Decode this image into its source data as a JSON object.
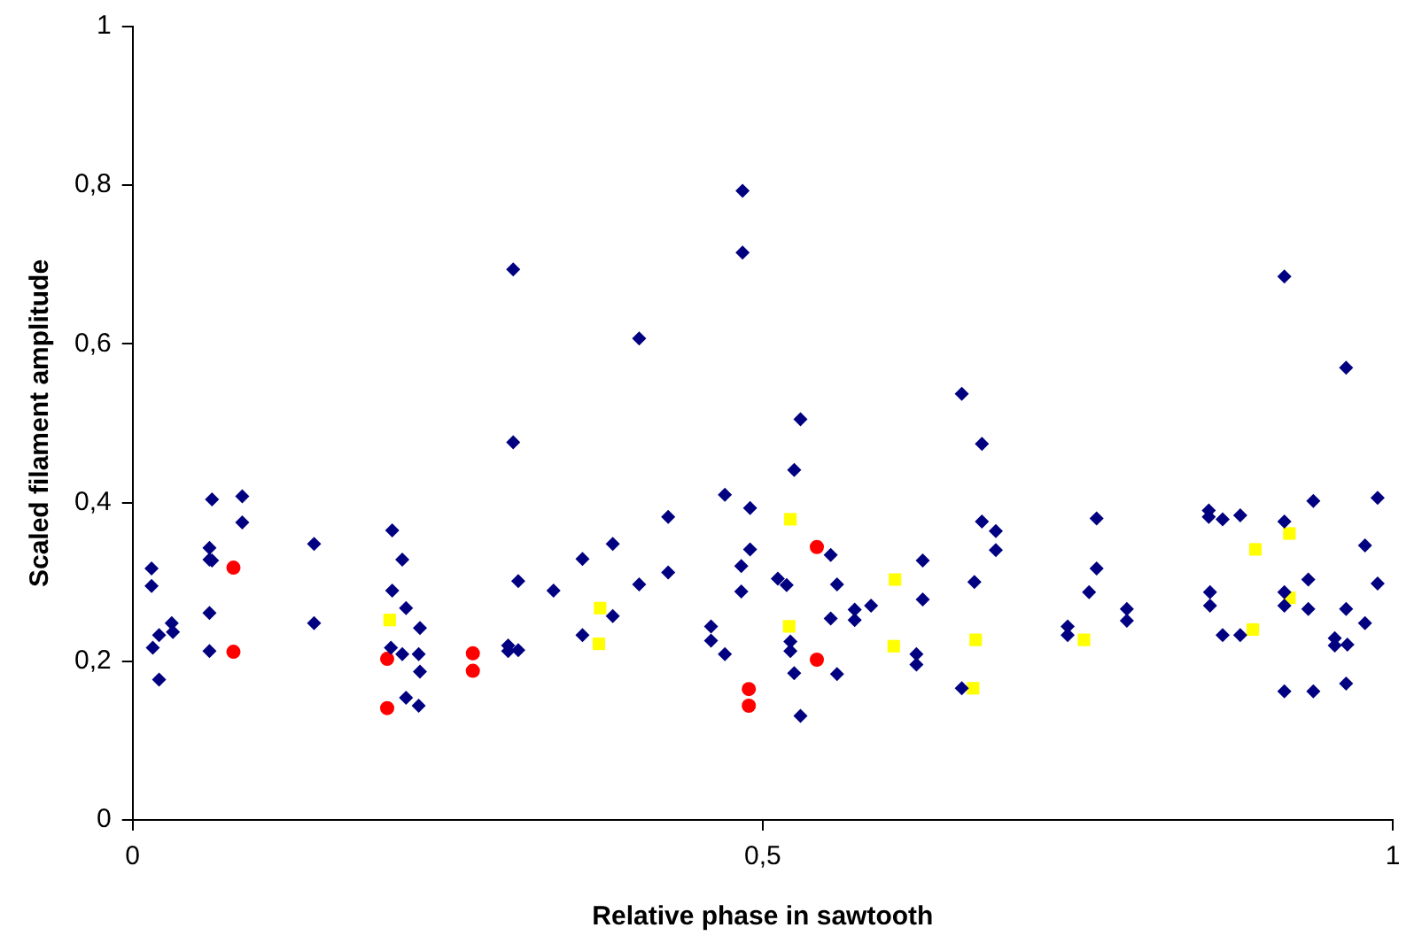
{
  "chart_data": {
    "type": "scatter",
    "xlabel": "Relative phase in sawtooth",
    "ylabel": "Scaled filament amplitude",
    "xlim": [
      0,
      1
    ],
    "xticks": [
      0,
      {
        "value": 0.5,
        "label": "0,5"
      },
      1
    ],
    "ylim": [
      0,
      1
    ],
    "yticks": [
      0,
      {
        "value": 0.2,
        "label": "0,2"
      },
      {
        "value": 0.4,
        "label": "0,4"
      },
      {
        "value": 0.6,
        "label": "0,6"
      },
      {
        "value": 0.8,
        "label": "0,8"
      },
      1
    ],
    "grid": false,
    "legend": false,
    "series": [
      {
        "color": "#000080",
        "marker": "diamond",
        "x": [
          0.015,
          0.015,
          0.031,
          0.021,
          0.016,
          0.032,
          0.021,
          0.063,
          0.087,
          0.087,
          0.061,
          0.061,
          0.063,
          0.061,
          0.061,
          0.144,
          0.144,
          0.206,
          0.214,
          0.206,
          0.217,
          0.228,
          0.205,
          0.214,
          0.227,
          0.228,
          0.217,
          0.227,
          0.298,
          0.298,
          0.306,
          0.306,
          0.334,
          0.484,
          0.484,
          0.302,
          0.402,
          0.302,
          0.53,
          0.525,
          0.47,
          0.49,
          0.425,
          0.381,
          0.357,
          0.49,
          0.483,
          0.425,
          0.402,
          0.483,
          0.512,
          0.519,
          0.554,
          0.559,
          0.627,
          0.627,
          0.586,
          0.573,
          0.573,
          0.554,
          0.381,
          0.357,
          0.459,
          0.459,
          0.47,
          0.522,
          0.522,
          0.525,
          0.559,
          0.53,
          0.622,
          0.622,
          0.914,
          0.963,
          0.658,
          0.674,
          0.674,
          0.685,
          0.685,
          0.668,
          0.658,
          0.765,
          0.765,
          0.759,
          0.789,
          0.789,
          0.742,
          0.742,
          0.854,
          0.854,
          0.865,
          0.879,
          0.914,
          0.937,
          0.988,
          0.978,
          0.988,
          0.933,
          0.855,
          0.855,
          0.914,
          0.914,
          0.933,
          0.963,
          0.978,
          0.865,
          0.879,
          0.954,
          0.954,
          0.964,
          0.914,
          0.937,
          0.963
        ],
        "values": [
          0.317,
          0.295,
          0.248,
          0.233,
          0.217,
          0.237,
          0.177,
          0.404,
          0.408,
          0.375,
          0.343,
          0.328,
          0.327,
          0.261,
          0.213,
          0.348,
          0.248,
          0.365,
          0.328,
          0.289,
          0.267,
          0.242,
          0.217,
          0.209,
          0.209,
          0.187,
          0.154,
          0.144,
          0.22,
          0.213,
          0.214,
          0.301,
          0.289,
          0.793,
          0.715,
          0.694,
          0.607,
          0.476,
          0.505,
          0.441,
          0.41,
          0.393,
          0.382,
          0.348,
          0.329,
          0.341,
          0.32,
          0.312,
          0.297,
          0.288,
          0.304,
          0.296,
          0.334,
          0.297,
          0.327,
          0.278,
          0.27,
          0.265,
          0.252,
          0.254,
          0.257,
          0.233,
          0.244,
          0.226,
          0.209,
          0.225,
          0.213,
          0.185,
          0.184,
          0.131,
          0.209,
          0.196,
          0.685,
          0.57,
          0.537,
          0.474,
          0.376,
          0.364,
          0.34,
          0.3,
          0.166,
          0.38,
          0.317,
          0.287,
          0.266,
          0.251,
          0.244,
          0.233,
          0.39,
          0.382,
          0.379,
          0.384,
          0.376,
          0.402,
          0.406,
          0.346,
          0.298,
          0.303,
          0.287,
          0.27,
          0.287,
          0.27,
          0.266,
          0.266,
          0.248,
          0.233,
          0.233,
          0.229,
          0.22,
          0.221,
          0.162,
          0.162,
          0.172
        ]
      },
      {
        "color": "#ff0000",
        "marker": "circle",
        "x": [
          0.08,
          0.08,
          0.202,
          0.202,
          0.27,
          0.27,
          0.543,
          0.543,
          0.489,
          0.489
        ],
        "values": [
          0.318,
          0.212,
          0.203,
          0.141,
          0.21,
          0.188,
          0.344,
          0.202,
          0.165,
          0.144
        ]
      },
      {
        "color": "#ffff00",
        "marker": "square",
        "x": [
          0.204,
          0.371,
          0.37,
          0.522,
          0.521,
          0.605,
          0.604,
          0.669,
          0.667,
          0.755,
          0.891,
          0.918,
          0.889,
          0.918
        ],
        "values": [
          0.252,
          0.267,
          0.222,
          0.379,
          0.244,
          0.303,
          0.219,
          0.227,
          0.166,
          0.227,
          0.341,
          0.361,
          0.24,
          0.28
        ]
      }
    ]
  }
}
